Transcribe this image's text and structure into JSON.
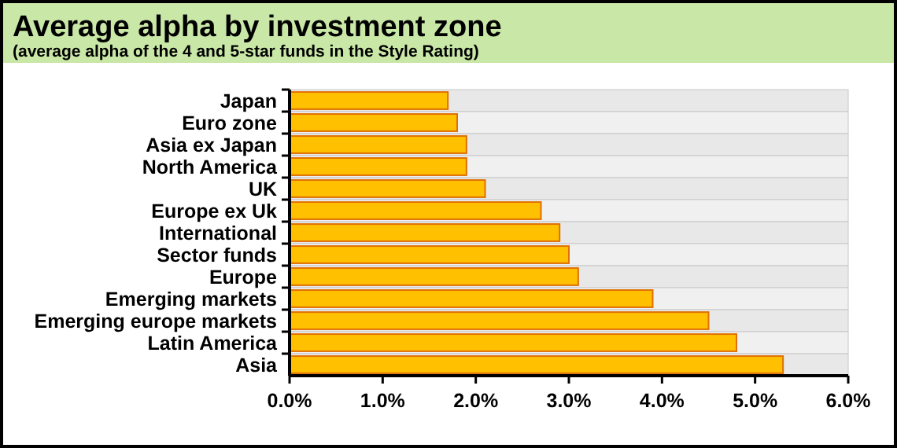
{
  "chart_data": {
    "type": "bar",
    "orientation": "horizontal",
    "title": "Average alpha by investment zone",
    "subtitle": "(average alpha of the 4 and 5-star funds in the Style Rating)",
    "categories": [
      "Japan",
      "Euro zone",
      "Asia ex Japan",
      "North America",
      "UK",
      "Europe ex Uk",
      "International",
      "Sector funds",
      "Europe",
      "Emerging markets",
      "Emerging europe markets",
      "Latin America",
      "Asia"
    ],
    "values": [
      1.7,
      1.8,
      1.9,
      1.9,
      2.1,
      2.7,
      2.9,
      3.0,
      3.1,
      3.9,
      4.5,
      4.8,
      5.3
    ],
    "color": "#ffc000",
    "xlim": [
      0,
      6
    ],
    "xticks": [
      {
        "value": 0,
        "label": "0.0%"
      },
      {
        "value": 1,
        "label": "1.0%"
      },
      {
        "value": 2,
        "label": "2.0%"
      },
      {
        "value": 3,
        "label": "3.0%"
      },
      {
        "value": 4,
        "label": "4.0%"
      },
      {
        "value": 5,
        "label": "5.0%"
      },
      {
        "value": 6,
        "label": "6.0%"
      }
    ]
  }
}
